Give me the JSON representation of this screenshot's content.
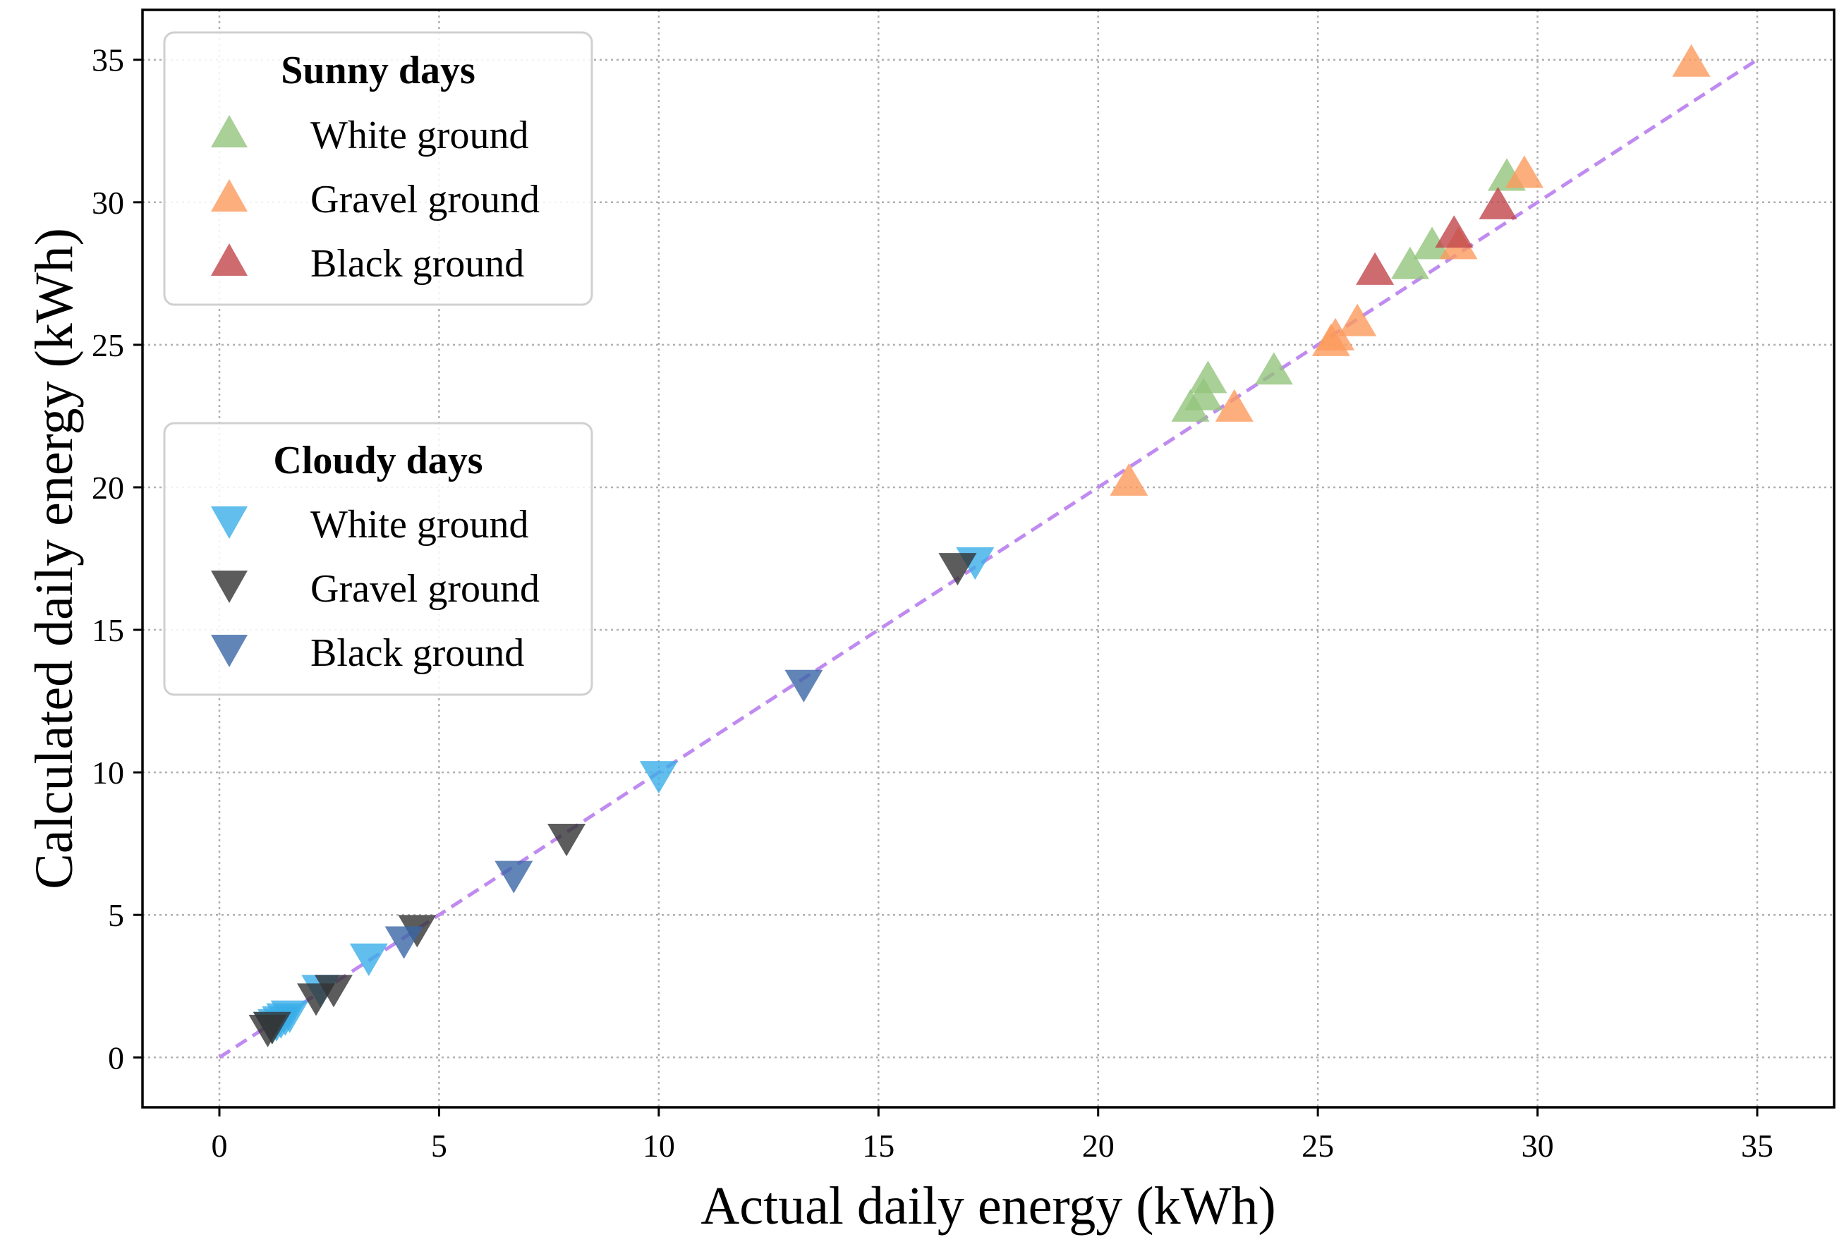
{
  "chart_data": {
    "type": "scatter",
    "xlabel": "Actual daily energy (kWh)",
    "ylabel": "Calculated daily energy (kWh)",
    "xlim": [
      -1.75,
      36.75
    ],
    "ylim": [
      -1.75,
      36.75
    ],
    "x_ticks": [
      0,
      5,
      10,
      15,
      20,
      25,
      30,
      35
    ],
    "y_ticks": [
      0,
      5,
      10,
      15,
      20,
      25,
      30,
      35
    ],
    "grid": true,
    "reference_line": {
      "name": "y = x",
      "x": [
        0,
        35
      ],
      "y": [
        0,
        35
      ],
      "color": "#c08bf0",
      "style": "dashed"
    },
    "legends": [
      {
        "title": "Sunny days",
        "placement": "upper-left",
        "entries": [
          "White ground",
          "Gravel ground",
          "Black ground"
        ]
      },
      {
        "title": "Cloudy days",
        "placement": "middle-left",
        "entries": [
          "White ground",
          "Gravel ground",
          "Black ground"
        ]
      }
    ],
    "series": [
      {
        "name": "White ground",
        "group": "Sunny days",
        "marker": "triangle-up",
        "color": "#93c47d",
        "points": [
          [
            22.1,
            22.8
          ],
          [
            22.4,
            23.2
          ],
          [
            22.5,
            23.8
          ],
          [
            24.0,
            24.1
          ],
          [
            27.1,
            27.8
          ],
          [
            27.6,
            28.5
          ],
          [
            29.3,
            30.9
          ]
        ]
      },
      {
        "name": "Gravel ground",
        "group": "Sunny days",
        "marker": "triangle-up",
        "color": "#fd9a5d",
        "points": [
          [
            20.7,
            20.2
          ],
          [
            23.1,
            22.8
          ],
          [
            25.3,
            25.1
          ],
          [
            25.4,
            25.3
          ],
          [
            25.9,
            25.8
          ],
          [
            28.2,
            28.5
          ],
          [
            29.7,
            31.0
          ],
          [
            33.5,
            34.9
          ]
        ]
      },
      {
        "name": "Black ground",
        "group": "Sunny days",
        "marker": "triangle-up",
        "color": "#c0464b",
        "points": [
          [
            26.3,
            27.6
          ],
          [
            28.1,
            28.9
          ],
          [
            29.1,
            29.9
          ]
        ]
      },
      {
        "name": "White ground",
        "group": "Cloudy days",
        "marker": "triangle-down",
        "color": "#3aaee8",
        "points": [
          [
            1.2,
            1.1
          ],
          [
            1.3,
            1.2
          ],
          [
            1.4,
            1.3
          ],
          [
            1.5,
            1.4
          ],
          [
            1.6,
            1.5
          ],
          [
            2.3,
            2.4
          ],
          [
            3.4,
            3.5
          ],
          [
            10.0,
            9.9
          ],
          [
            17.2,
            17.4
          ]
        ]
      },
      {
        "name": "Gravel ground",
        "group": "Cloudy days",
        "marker": "triangle-down",
        "color": "#333333",
        "points": [
          [
            1.1,
            1.0
          ],
          [
            1.2,
            1.1
          ],
          [
            2.2,
            2.1
          ],
          [
            2.6,
            2.4
          ],
          [
            4.5,
            4.5
          ],
          [
            7.9,
            7.7
          ],
          [
            16.8,
            17.2
          ]
        ]
      },
      {
        "name": "Black ground",
        "group": "Cloudy days",
        "marker": "triangle-down",
        "color": "#3b66a6",
        "points": [
          [
            4.2,
            4.1
          ],
          [
            6.7,
            6.4
          ],
          [
            13.3,
            13.1
          ]
        ]
      }
    ]
  }
}
